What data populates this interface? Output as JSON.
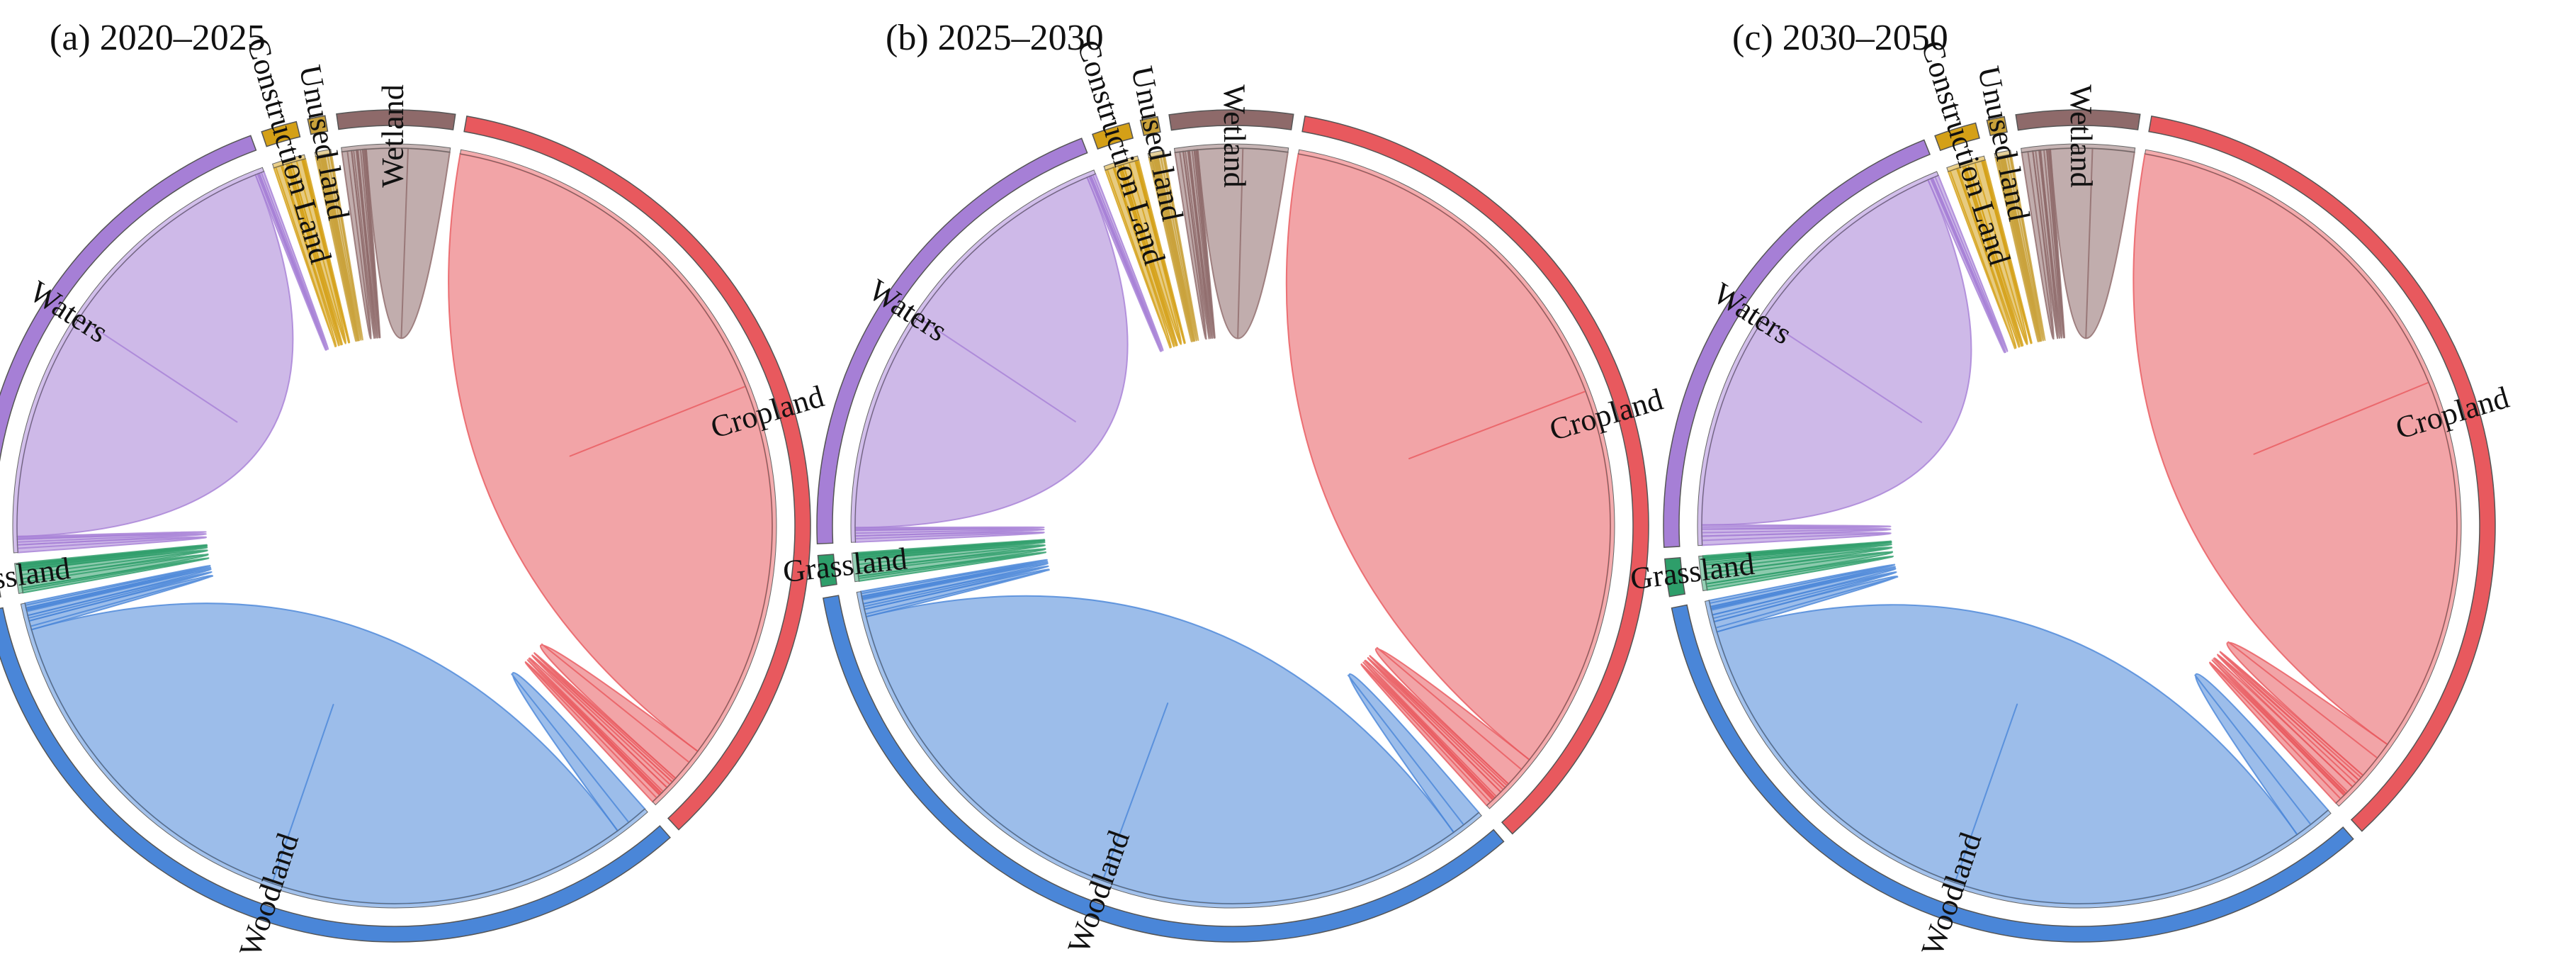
{
  "chart_data": [
    {
      "type": "chord",
      "title": "(a)  2020–2025",
      "categories": [
        "Cropland",
        "Woodland",
        "Grassland",
        "Waters",
        "Construction Land",
        "Unused land",
        "Wetland"
      ],
      "colors": [
        "#e8595e",
        "#4a86d8",
        "#2e9e6a",
        "#a67fd6",
        "#d4a017",
        "#c9a13a",
        "#8e6a6a"
      ],
      "matrix": [
        [
          55,
          2,
          0.3,
          0.5,
          0.8,
          0.2,
          0.6
        ],
        [
          3,
          52,
          0.5,
          0.4,
          0.6,
          0.2,
          0.4
        ],
        [
          0.4,
          0.8,
          0.6,
          0.2,
          0.2,
          0.1,
          0.1
        ],
        [
          0.6,
          0.4,
          0.2,
          33,
          0.3,
          0.1,
          0.3
        ],
        [
          0.3,
          0.2,
          0.1,
          0.1,
          0.8,
          0.1,
          0.1
        ],
        [
          0.2,
          0.1,
          0.1,
          0.1,
          0.1,
          0.4,
          0.1
        ],
        [
          0.8,
          0.3,
          0.1,
          0.4,
          0.2,
          0.1,
          6
        ]
      ]
    },
    {
      "type": "chord",
      "title": "(b)  2025–2030",
      "categories": [
        "Cropland",
        "Woodland",
        "Grassland",
        "Waters",
        "Construction Land",
        "Unused land",
        "Wetland"
      ],
      "colors": [
        "#e8595e",
        "#4a86d8",
        "#2e9e6a",
        "#a67fd6",
        "#d4a017",
        "#c9a13a",
        "#8e6a6a"
      ],
      "matrix": [
        [
          56,
          1.8,
          0.3,
          0.4,
          0.9,
          0.2,
          0.5
        ],
        [
          2.8,
          53,
          0.4,
          0.4,
          0.6,
          0.2,
          0.4
        ],
        [
          0.4,
          0.7,
          0.6,
          0.2,
          0.2,
          0.1,
          0.1
        ],
        [
          0.5,
          0.4,
          0.2,
          32,
          0.3,
          0.1,
          0.3
        ],
        [
          0.3,
          0.2,
          0.1,
          0.1,
          0.9,
          0.1,
          0.1
        ],
        [
          0.2,
          0.1,
          0.1,
          0.1,
          0.1,
          0.4,
          0.1
        ],
        [
          0.7,
          0.3,
          0.1,
          0.4,
          0.2,
          0.1,
          6.5
        ]
      ]
    },
    {
      "type": "chord",
      "title": "(c)  2030–2050",
      "categories": [
        "Cropland",
        "Woodland",
        "Grassland",
        "Waters",
        "Construction Land",
        "Unused land",
        "Wetland"
      ],
      "colors": [
        "#e8595e",
        "#4a86d8",
        "#2e9e6a",
        "#a67fd6",
        "#d4a017",
        "#c9a13a",
        "#8e6a6a"
      ],
      "matrix": [
        [
          54,
          2.4,
          0.4,
          0.6,
          1,
          0.2,
          0.7
        ],
        [
          3.2,
          51,
          0.6,
          0.5,
          0.7,
          0.2,
          0.5
        ],
        [
          0.5,
          0.9,
          0.6,
          0.3,
          0.2,
          0.1,
          0.1
        ],
        [
          0.7,
          0.5,
          0.3,
          31,
          0.4,
          0.1,
          0.4
        ],
        [
          0.3,
          0.2,
          0.1,
          0.1,
          1,
          0.1,
          0.1
        ],
        [
          0.2,
          0.1,
          0.1,
          0.1,
          0.1,
          0.4,
          0.1
        ],
        [
          0.9,
          0.4,
          0.1,
          0.5,
          0.2,
          0.1,
          6
        ]
      ]
    }
  ]
}
